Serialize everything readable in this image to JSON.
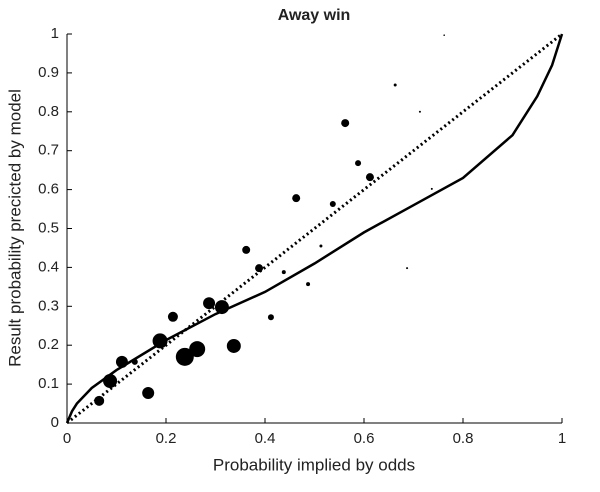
{
  "chart_data": {
    "type": "scatter",
    "title": "Away win",
    "xlabel": "Probability implied by odds",
    "ylabel": "Result probability precicted by model",
    "xlim": [
      0,
      1
    ],
    "ylim": [
      0,
      1
    ],
    "xticks": [
      0,
      0.2,
      0.4,
      0.6,
      0.8,
      1
    ],
    "yticks": [
      0,
      0.1,
      0.2,
      0.3,
      0.4,
      0.5,
      0.6,
      0.7,
      0.8,
      0.9,
      1
    ],
    "series": [
      {
        "type": "line",
        "style": "dotted",
        "color": "#000000",
        "x": [
          0,
          1
        ],
        "values": [
          0,
          1
        ]
      },
      {
        "type": "line",
        "style": "solid",
        "color": "#000000",
        "x": [
          0,
          0.01,
          0.02,
          0.05,
          0.1,
          0.2,
          0.3,
          0.4,
          0.5,
          0.6,
          0.7,
          0.8,
          0.9,
          0.95,
          0.98,
          1
        ],
        "values": [
          0,
          0.03,
          0.05,
          0.09,
          0.136,
          0.213,
          0.28,
          0.337,
          0.41,
          0.49,
          0.56,
          0.63,
          0.74,
          0.84,
          0.92,
          1
        ]
      },
      {
        "type": "scatter",
        "color": "#000000",
        "x": [
          0.065,
          0.087,
          0.111,
          0.137,
          0.164,
          0.188,
          0.214,
          0.238,
          0.263,
          0.287,
          0.313,
          0.337,
          0.362,
          0.388,
          0.412,
          0.438,
          0.463,
          0.487,
          0.513,
          0.537,
          0.562,
          0.588,
          0.612,
          0.663,
          0.687,
          0.713,
          0.737,
          0.762
        ],
        "values": [
          0.057,
          0.108,
          0.157,
          0.157,
          0.077,
          0.211,
          0.273,
          0.17,
          0.19,
          0.308,
          0.298,
          0.198,
          0.445,
          0.398,
          0.272,
          0.388,
          0.578,
          0.357,
          0.455,
          0.563,
          0.771,
          0.668,
          0.632,
          0.869,
          0.398,
          0.8,
          0.602,
          0.997
        ],
        "sizes": [
          5,
          7,
          6,
          3,
          6,
          7.5,
          5,
          9,
          8,
          6,
          7,
          7,
          4,
          4,
          3,
          2,
          4,
          2,
          1.5,
          3,
          4,
          3,
          4,
          1.5,
          1,
          1,
          1,
          0.8
        ]
      }
    ]
  }
}
